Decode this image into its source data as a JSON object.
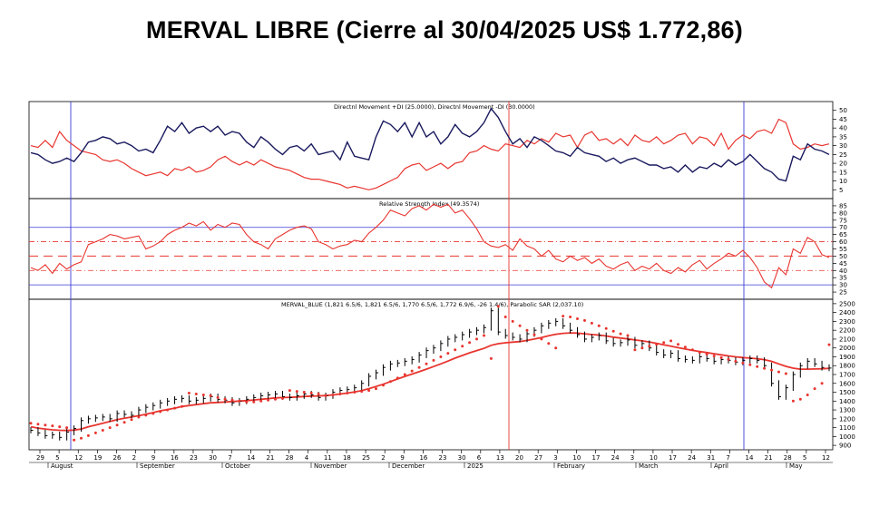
{
  "title": "MERVAL LIBRE (Cierre al 30/04/2025 US$ 1.772,86)",
  "colors": {
    "di_plus": "#1a1a5e",
    "di_minus": "#e8352f",
    "rsi": "#e8352f",
    "ma": "#e8352f",
    "sar": "#e8352f",
    "price": "#000000",
    "guide": "#3b3bd6"
  },
  "chart_data": [
    {
      "type": "line",
      "title": "Directnl Movement +DI (25.0000), Directnl Movement -DI (30.0000)",
      "ylim": [
        0,
        55
      ],
      "yticks": [
        5,
        10,
        15,
        20,
        25,
        30,
        35,
        40,
        45,
        50
      ],
      "series": [
        {
          "name": "+DI",
          "values": [
            26,
            25,
            22,
            20,
            21,
            23,
            21,
            26,
            32,
            33,
            35,
            34,
            31,
            32,
            30,
            27,
            28,
            26,
            33,
            41,
            38,
            43,
            37,
            40,
            41,
            38,
            41,
            36,
            38,
            37,
            32,
            29,
            35,
            32,
            28,
            25,
            29,
            30,
            27,
            31,
            25,
            26,
            27,
            22,
            32,
            24,
            23,
            22,
            35,
            44,
            42,
            38,
            43,
            35,
            43,
            35,
            38,
            31,
            35,
            42,
            37,
            35,
            38,
            43,
            51,
            46,
            38,
            31,
            34,
            29,
            35,
            33,
            30,
            27,
            26,
            24,
            29,
            26,
            25,
            24,
            21,
            23,
            20,
            22,
            23,
            21,
            19,
            19,
            17,
            18,
            15,
            19,
            15,
            18,
            17,
            20,
            18,
            22,
            19,
            21,
            25,
            21,
            17,
            15,
            11,
            10,
            24,
            22,
            31,
            28,
            27,
            25
          ]
        },
        {
          "name": "-DI",
          "values": [
            30,
            29,
            33,
            29,
            38,
            33,
            30,
            27,
            26,
            25,
            22,
            21,
            22,
            20,
            17,
            15,
            13,
            14,
            15,
            13,
            17,
            16,
            18,
            15,
            16,
            18,
            22,
            24,
            21,
            19,
            21,
            19,
            22,
            20,
            18,
            17,
            16,
            14,
            12,
            11,
            11,
            10,
            9,
            8,
            6,
            7,
            6,
            5,
            6,
            8,
            10,
            12,
            17,
            19,
            20,
            16,
            18,
            20,
            17,
            20,
            21,
            26,
            27,
            30,
            28,
            27,
            31,
            30,
            29,
            33,
            31,
            34,
            32,
            37,
            35,
            36,
            29,
            36,
            38,
            33,
            34,
            31,
            34,
            30,
            36,
            33,
            32,
            35,
            31,
            33,
            36,
            37,
            31,
            35,
            34,
            30,
            37,
            28,
            33,
            36,
            34,
            38,
            39,
            37,
            45,
            43,
            31,
            28,
            29,
            31,
            30,
            31
          ]
        }
      ]
    },
    {
      "type": "line",
      "title": "Relative Strength Index (49.3574)",
      "ylim": [
        20,
        90
      ],
      "yticks": [
        25,
        30,
        35,
        40,
        45,
        50,
        55,
        60,
        65,
        70,
        75,
        80,
        85
      ],
      "reference_lines": [
        30,
        40,
        50,
        60,
        70
      ],
      "series": [
        {
          "name": "RSI",
          "values": [
            42,
            40,
            44,
            38,
            45,
            41,
            44,
            46,
            58,
            60,
            62,
            65,
            64,
            62,
            63,
            64,
            55,
            57,
            60,
            65,
            68,
            70,
            73,
            71,
            74,
            68,
            72,
            70,
            73,
            72,
            65,
            60,
            58,
            55,
            62,
            65,
            68,
            70,
            71,
            69,
            60,
            58,
            55,
            57,
            58,
            61,
            60,
            66,
            70,
            75,
            82,
            80,
            78,
            83,
            85,
            82,
            86,
            84,
            86,
            80,
            82,
            76,
            69,
            60,
            57,
            56,
            58,
            54,
            62,
            57,
            55,
            50,
            54,
            48,
            46,
            50,
            47,
            49,
            45,
            48,
            43,
            41,
            44,
            46,
            40,
            43,
            41,
            45,
            40,
            38,
            42,
            39,
            44,
            47,
            41,
            45,
            48,
            52,
            50,
            54,
            49,
            42,
            32,
            28,
            42,
            37,
            55,
            52,
            63,
            60,
            51,
            49
          ]
        }
      ]
    },
    {
      "type": "line",
      "title": "MERVAL_BLUE (1,821 6.5/6, 1,821 6.5/6, 1,770 6.5/6, 1,772 6.9/6, -26 1.4/6), Parabolic SAR (2,037.10)",
      "ylim": [
        850,
        2550
      ],
      "yticks": [
        900,
        1000,
        1100,
        1200,
        1300,
        1400,
        1500,
        1600,
        1700,
        1800,
        1900,
        2000,
        2100,
        2200,
        2300,
        2400,
        2500
      ],
      "series": [
        {
          "name": "MERVAL_BLUE",
          "values": [
            1070,
            1040,
            1010,
            1020,
            990,
            1050,
            1090,
            1180,
            1200,
            1210,
            1220,
            1200,
            1260,
            1250,
            1240,
            1300,
            1330,
            1350,
            1380,
            1400,
            1420,
            1430,
            1400,
            1410,
            1430,
            1450,
            1420,
            1410,
            1380,
            1400,
            1420,
            1440,
            1460,
            1470,
            1480,
            1450,
            1440,
            1460,
            1480,
            1470,
            1440,
            1460,
            1500,
            1520,
            1530,
            1550,
            1600,
            1680,
            1720,
            1780,
            1820,
            1830,
            1850,
            1870,
            1920,
            1970,
            2000,
            2050,
            2100,
            2120,
            2150,
            2180,
            2200,
            2230,
            2420,
            2180,
            2140,
            2120,
            2100,
            2160,
            2200,
            2250,
            2280,
            2300,
            2250,
            2200,
            2150,
            2100,
            2120,
            2140,
            2080,
            2050,
            2060,
            2090,
            2030,
            2050,
            2000,
            1950,
            1920,
            1940,
            1880,
            1870,
            1860,
            1900,
            1880,
            1850,
            1870,
            1860,
            1840,
            1860,
            1880,
            1860,
            1800,
            1600,
            1450,
            1550,
            1700,
            1800,
            1850,
            1820,
            1780,
            1773
          ]
        },
        {
          "name": "MA",
          "values": [
            1110,
            1095,
            1085,
            1075,
            1070,
            1068,
            1072,
            1085,
            1110,
            1130,
            1150,
            1170,
            1190,
            1205,
            1220,
            1235,
            1250,
            1270,
            1290,
            1305,
            1320,
            1338,
            1350,
            1360,
            1370,
            1380,
            1385,
            1390,
            1395,
            1400,
            1405,
            1412,
            1420,
            1428,
            1436,
            1440,
            1442,
            1446,
            1452,
            1456,
            1458,
            1462,
            1470,
            1480,
            1490,
            1502,
            1518,
            1540,
            1565,
            1590,
            1620,
            1650,
            1678,
            1705,
            1732,
            1760,
            1790,
            1820,
            1852,
            1885,
            1915,
            1945,
            1970,
            1995,
            2030,
            2048,
            2058,
            2066,
            2072,
            2085,
            2100,
            2118,
            2138,
            2155,
            2165,
            2170,
            2168,
            2160,
            2152,
            2145,
            2135,
            2122,
            2112,
            2102,
            2090,
            2080,
            2068,
            2052,
            2035,
            2020,
            2003,
            1988,
            1972,
            1960,
            1948,
            1935,
            1922,
            1910,
            1900,
            1892,
            1885,
            1878,
            1868,
            1848,
            1820,
            1792,
            1772,
            1760,
            1760,
            1762,
            1765,
            1770
          ]
        },
        {
          "name": "Parabolic SAR",
          "values": [
            1150,
            1140,
            1130,
            1120,
            1110,
            1100,
            960,
            980,
            1010,
            1040,
            1070,
            1100,
            1130,
            1160,
            1190,
            1220,
            1240,
            1260,
            1280,
            1300,
            1320,
            1340,
            1490,
            1480,
            1470,
            1460,
            1440,
            1420,
            1410,
            1400,
            1390,
            1390,
            1400,
            1410,
            1420,
            1430,
            1520,
            1510,
            1500,
            1490,
            1480,
            1460,
            1470,
            1480,
            1490,
            1500,
            1510,
            1520,
            1540,
            1580,
            1620,
            1660,
            1700,
            1740,
            1780,
            1820,
            1860,
            1900,
            1940,
            1980,
            2020,
            2060,
            2100,
            2140,
            1880,
            2470,
            2350,
            2300,
            2250,
            2200,
            2150,
            2100,
            2050,
            2000,
            2360,
            2350,
            2330,
            2310,
            2280,
            2250,
            2220,
            2190,
            2160,
            2140,
            1980,
            2000,
            2020,
            2040,
            2060,
            2080,
            2040,
            2010,
            1980,
            1950,
            1930,
            1910,
            1890,
            1870,
            1850,
            1830,
            1810,
            1790,
            1770,
            1750,
            1730,
            1710,
            1400,
            1420,
            1470,
            1540,
            1600,
            2037
          ]
        }
      ],
      "x_tick_labels": [
        "29",
        "5",
        "12",
        "19",
        "26",
        "2",
        "9",
        "16",
        "23",
        "30",
        "7",
        "14",
        "21",
        "28",
        "4",
        "11",
        "18",
        "25",
        "2",
        "9",
        "16",
        "23",
        "30",
        "6",
        "13",
        "20",
        "27",
        "3",
        "10",
        "17",
        "24",
        "3",
        "10",
        "17",
        "24",
        "31",
        "7",
        "14",
        "21",
        "28",
        "5",
        "12"
      ],
      "x_month_labels": [
        "August",
        "September",
        "October",
        "November",
        "December",
        "2025",
        "February",
        "March",
        "April",
        "May"
      ]
    }
  ]
}
